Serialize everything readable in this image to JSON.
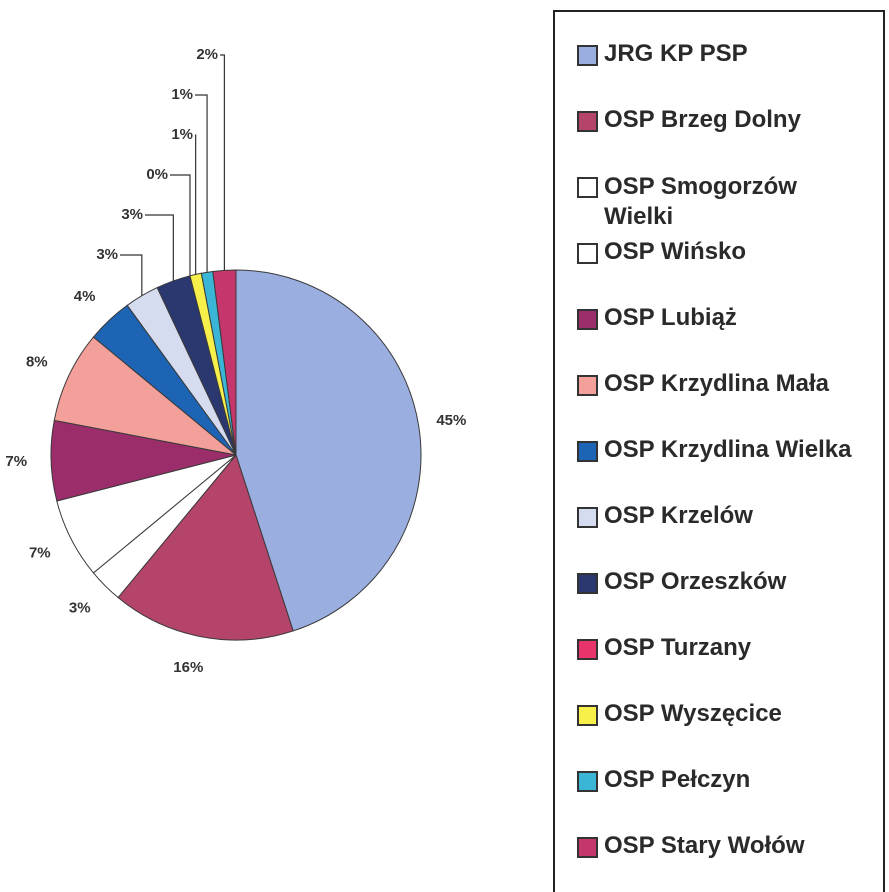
{
  "chart_data": {
    "type": "pie",
    "categories": [
      "JRG KP PSP",
      "OSP Brzeg Dolny",
      "OSP Smogorzów Wielki",
      "OSP Wińsko",
      "OSP Lubiąż",
      "OSP Krzydlina Mała",
      "OSP Krzydlina Wielka",
      "OSP Krzelów",
      "OSP Orzeszków",
      "OSP Turzany",
      "OSP Wyszęcice",
      "OSP Pełczyn",
      "OSP Stary Wołów"
    ],
    "values": [
      45,
      16,
      3,
      7,
      7,
      8,
      4,
      3,
      3,
      0,
      1,
      1,
      2
    ],
    "value_labels": [
      "45%",
      "16%",
      "3%",
      "7%",
      "7%",
      "8%",
      "4%",
      "3%",
      "3%",
      "0%",
      "1%",
      "1%",
      "2%"
    ],
    "colors": [
      "#9baee0",
      "#b4446a",
      "#ffffff",
      "#ffffff",
      "#9b2d6b",
      "#f4a09a",
      "#1e64b4",
      "#d5dcef",
      "#2b3870",
      "#e8336b",
      "#f7f04a",
      "#3ab5d6",
      "#c4366c"
    ]
  }
}
